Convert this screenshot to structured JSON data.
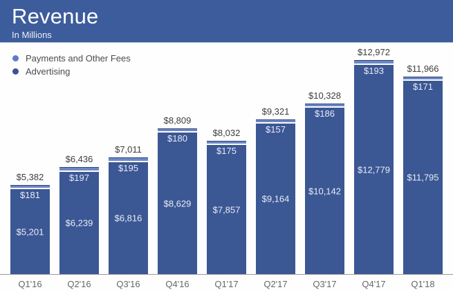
{
  "header": {
    "title": "Revenue",
    "subtitle": "In Millions"
  },
  "legend": [
    {
      "label": "Payments and Other Fees",
      "color": "#5c7cc9"
    },
    {
      "label": "Advertising",
      "color": "#3a5491"
    }
  ],
  "colors": {
    "header_background": "#3d5c9b",
    "advertising_bar": "#3b5794",
    "payments_bar": "#6d87c6",
    "payments_bar_top_border": "#2e4573",
    "bar_value_text": "#e9edf6",
    "total_label_text": "#3d3d3d",
    "axis_line": "#9a9a9a",
    "x_label_text": "#666666"
  },
  "chart_data": {
    "type": "bar",
    "stacked": true,
    "title": "Revenue",
    "subtitle": "In Millions",
    "value_prefix": "$",
    "unit": "millions USD",
    "categories": [
      "Q1'16",
      "Q2'16",
      "Q3'16",
      "Q4'16",
      "Q1'17",
      "Q2'17",
      "Q3'17",
      "Q4'17",
      "Q1'18"
    ],
    "series": [
      {
        "name": "Advertising",
        "color": "#3b5794",
        "values": [
          5201,
          6239,
          6816,
          8629,
          7857,
          9164,
          10142,
          12779,
          11795
        ]
      },
      {
        "name": "Payments and Other Fees",
        "color": "#6d87c6",
        "values": [
          181,
          197,
          195,
          180,
          175,
          157,
          186,
          193,
          171
        ]
      }
    ],
    "totals": [
      5382,
      6436,
      7011,
      8809,
      8032,
      9321,
      10328,
      12972,
      11966
    ],
    "ylim": [
      0,
      13000
    ],
    "grid": false,
    "legend_position": "top-left",
    "data_labels": true
  }
}
